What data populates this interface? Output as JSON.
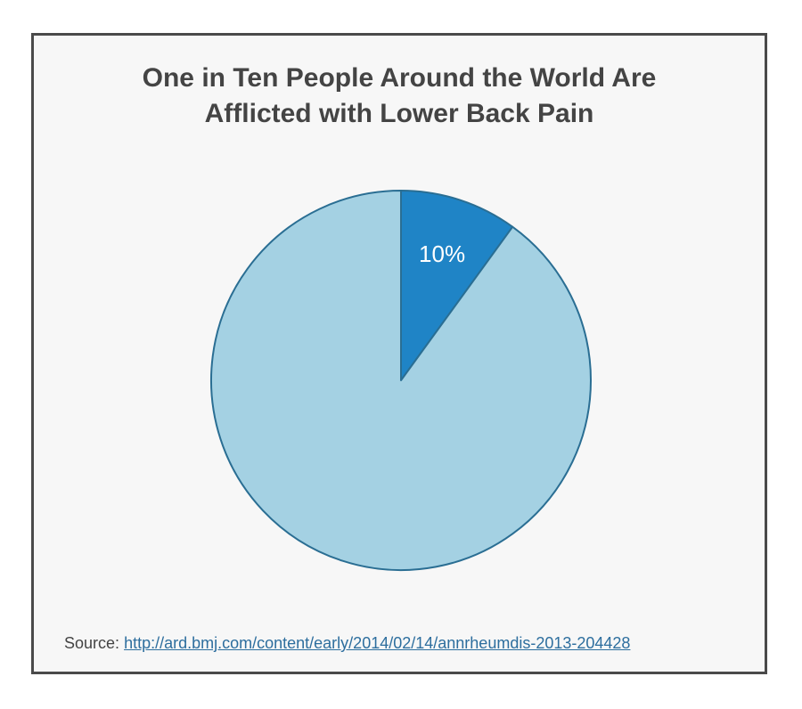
{
  "chart_data": {
    "type": "pie",
    "title_lines": [
      "One in Ten People Around the World Are",
      "Afflicted with Lower Back Pain"
    ],
    "slices": [
      {
        "value": 10,
        "label": "10%",
        "color": "#1f84c6"
      },
      {
        "value": 90,
        "label": "",
        "color": "#a4d1e3"
      }
    ],
    "start_angle_deg": 0,
    "stroke_color": "#2a6e93"
  },
  "source": {
    "prefix": "Source:",
    "url": "http://ard.bmj.com/content/early/2014/02/14/annrheumdis-2013-204428"
  }
}
